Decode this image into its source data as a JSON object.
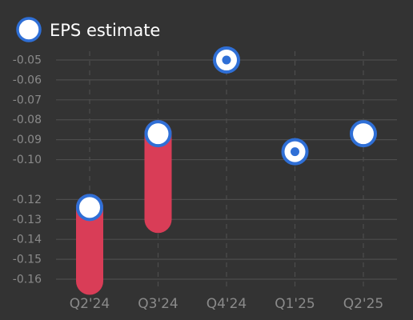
{
  "legend": {
    "label": "EPS estimate",
    "placement": "top-left"
  },
  "colors": {
    "background": "#333333",
    "grid": "#4d4d4d",
    "tick_text": "#8a8a8a",
    "legend_text": "#ffffff",
    "marker_fill": "#ffffff",
    "marker_stroke": "#2f6fd6",
    "miss_bar": "#d93d57"
  },
  "chart_data": {
    "type": "scatter",
    "categories": [
      "Q2'24",
      "Q3'24",
      "Q4'24",
      "Q1'25",
      "Q2'25"
    ],
    "series": [
      {
        "name": "EPS estimate",
        "values": [
          -0.124,
          -0.087,
          -0.05,
          -0.096,
          -0.087
        ]
      },
      {
        "values": [
          -0.161,
          -0.13,
          -0.05,
          -0.096,
          null
        ]
      }
    ],
    "ylim": [
      -0.163,
      -0.047
    ],
    "yticks": [
      -0.05,
      -0.06,
      -0.07,
      -0.08,
      -0.09,
      -0.1,
      -0.12,
      -0.13,
      -0.14,
      -0.15,
      -0.16
    ],
    "ytick_labels": [
      "-0.05",
      "-0.06",
      "-0.07",
      "-0.08",
      "-0.09",
      "-0.10",
      "-0.12",
      "-0.13",
      "-0.14",
      "-0.15",
      "-0.16"
    ],
    "grid": true,
    "xlabel": "",
    "ylabel": "",
    "title": ""
  }
}
